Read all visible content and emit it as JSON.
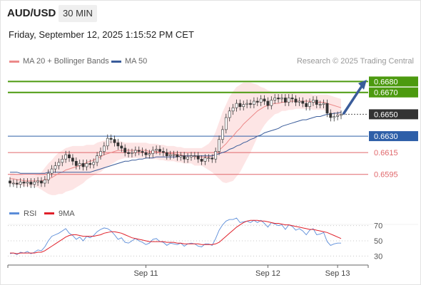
{
  "header": {
    "pair": "AUD/USD",
    "timeframe": "30 MIN",
    "datetime": "Friday, September 12, 2025 1:15:52 PM CET"
  },
  "legend": {
    "ma_bollinger": "MA 20 + Bollinger Bands",
    "ma50": "MA 50",
    "credit": "Research © 2025 Trading Central"
  },
  "colors": {
    "resistance": "#4c9a0f",
    "pivot": "#2e5fa8",
    "support": "#e0676b",
    "bollinger_fill": "#fde0e0",
    "ma20": "#ec8a8a",
    "ma50": "#3a5c9a",
    "candle": "#2c7c2c",
    "candle_down": "#c8323a",
    "rsi": "#5b8dd9",
    "rsi_ma": "#e0202a",
    "last_price": "#333333"
  },
  "chart_data": {
    "type": "candlestick",
    "ylim": [
      0.6572,
      0.6692
    ],
    "x_ticks": [
      "Sep 11",
      "Sep 12",
      "Sep 13"
    ],
    "levels": [
      {
        "label": "0.6680",
        "value": 0.668,
        "kind": "resistance"
      },
      {
        "label": "0.6670",
        "value": 0.667,
        "kind": "resistance"
      },
      {
        "label": "0.6650",
        "value": 0.665,
        "kind": "last"
      },
      {
        "label": "0.6630",
        "value": 0.663,
        "kind": "pivot"
      },
      {
        "label": "0.6615",
        "value": 0.6615,
        "kind": "support"
      },
      {
        "label": "0.6595",
        "value": 0.6595,
        "kind": "support"
      }
    ],
    "close": [
      0.6587,
      0.6587,
      0.6586,
      0.6588,
      0.6587,
      0.6588,
      0.6586,
      0.6588,
      0.6589,
      0.6587,
      0.659,
      0.6596,
      0.66,
      0.6603,
      0.6606,
      0.6609,
      0.6613,
      0.661,
      0.6607,
      0.6603,
      0.6605,
      0.6602,
      0.6605,
      0.6604,
      0.6606,
      0.6612,
      0.6616,
      0.6621,
      0.6628,
      0.6627,
      0.6624,
      0.6621,
      0.6619,
      0.6615,
      0.6614,
      0.6615,
      0.6617,
      0.6616,
      0.6615,
      0.6613,
      0.6614,
      0.6617,
      0.6618,
      0.6616,
      0.6615,
      0.6612,
      0.6613,
      0.6613,
      0.6611,
      0.6612,
      0.6609,
      0.6611,
      0.6612,
      0.6612,
      0.6609,
      0.6607,
      0.661,
      0.661,
      0.6609,
      0.6616,
      0.6627,
      0.6636,
      0.6647,
      0.6653,
      0.6656,
      0.666,
      0.6657,
      0.6659,
      0.666,
      0.6659,
      0.6662,
      0.6661,
      0.6664,
      0.6662,
      0.6658,
      0.6663,
      0.6665,
      0.6664,
      0.6665,
      0.6661,
      0.6665,
      0.6664,
      0.6661,
      0.6662,
      0.666,
      0.6657,
      0.6661,
      0.6663,
      0.6659,
      0.6659,
      0.666,
      0.6651,
      0.6647,
      0.6648,
      0.6649,
      0.665
    ],
    "ma20": [
      0.6591,
      0.6591,
      0.659,
      0.659,
      0.6589,
      0.6589,
      0.6589,
      0.6589,
      0.6589,
      0.6589,
      0.659,
      0.6591,
      0.6592,
      0.6594,
      0.6596,
      0.6597,
      0.6599,
      0.66,
      0.6601,
      0.6602,
      0.6603,
      0.6604,
      0.6606,
      0.6607,
      0.6608,
      0.661,
      0.6611,
      0.6613,
      0.6614,
      0.6615,
      0.6616,
      0.6617,
      0.6617,
      0.6617,
      0.6617,
      0.6617,
      0.6617,
      0.6617,
      0.6617,
      0.6617,
      0.6616,
      0.6616,
      0.6616,
      0.6615,
      0.6615,
      0.6614,
      0.6614,
      0.6614,
      0.6613,
      0.6613,
      0.6612,
      0.6612,
      0.6612,
      0.6611,
      0.6611,
      0.6611,
      0.6611,
      0.6611,
      0.6612,
      0.6614,
      0.6617,
      0.662,
      0.6623,
      0.6627,
      0.663,
      0.6634,
      0.6637,
      0.6641,
      0.6644,
      0.6647,
      0.665,
      0.6653,
      0.6655,
      0.6657,
      0.6658,
      0.6659,
      0.666,
      0.666,
      0.6661,
      0.6661,
      0.6662,
      0.6662,
      0.6662,
      0.6662,
      0.6662,
      0.6662,
      0.6662,
      0.6661,
      0.6661,
      0.6661,
      0.6661,
      0.666,
      0.6659,
      0.6658,
      0.6657,
      0.6656
    ],
    "ma50": [
      0.6597,
      0.6597,
      0.6597,
      0.6596,
      0.6596,
      0.6596,
      0.6596,
      0.6596,
      0.6596,
      0.6596,
      0.6596,
      0.6597,
      0.6597,
      0.6597,
      0.6597,
      0.6597,
      0.6597,
      0.6597,
      0.6597,
      0.6597,
      0.6597,
      0.6597,
      0.6597,
      0.6597,
      0.6598,
      0.6599,
      0.66,
      0.6601,
      0.6602,
      0.6603,
      0.6604,
      0.6605,
      0.6606,
      0.6607,
      0.6607,
      0.6608,
      0.6608,
      0.6609,
      0.6609,
      0.661,
      0.661,
      0.661,
      0.6611,
      0.6611,
      0.6611,
      0.6611,
      0.6611,
      0.6611,
      0.6611,
      0.6612,
      0.6612,
      0.6612,
      0.6612,
      0.6612,
      0.6612,
      0.6612,
      0.6612,
      0.6612,
      0.6612,
      0.6613,
      0.6614,
      0.6615,
      0.6616,
      0.6618,
      0.6619,
      0.6621,
      0.6622,
      0.6624,
      0.6625,
      0.6627,
      0.6628,
      0.663,
      0.6631,
      0.6633,
      0.6634,
      0.6635,
      0.6636,
      0.6637,
      0.6639,
      0.664,
      0.6641,
      0.6642,
      0.6643,
      0.6644,
      0.6645,
      0.6645,
      0.6646,
      0.6647,
      0.6648,
      0.6648,
      0.6649,
      0.665,
      0.665,
      0.6651,
      0.6651,
      0.6652
    ],
    "bb_width": [
      0.0005,
      0.0005,
      0.0005,
      0.0005,
      0.0005,
      0.0005,
      0.0005,
      0.0005,
      0.0006,
      0.0008,
      0.0011,
      0.0014,
      0.0016,
      0.0018,
      0.0019,
      0.002,
      0.002,
      0.002,
      0.002,
      0.0019,
      0.0018,
      0.0017,
      0.0016,
      0.0015,
      0.0014,
      0.0014,
      0.0014,
      0.0013,
      0.0012,
      0.0011,
      0.001,
      0.0009,
      0.0008,
      0.0007,
      0.0007,
      0.0007,
      0.0007,
      0.0007,
      0.0007,
      0.0007,
      0.0007,
      0.0007,
      0.0007,
      0.0007,
      0.0007,
      0.0007,
      0.0007,
      0.0007,
      0.0007,
      0.0007,
      0.0007,
      0.0007,
      0.0007,
      0.0008,
      0.0008,
      0.0008,
      0.001,
      0.0012,
      0.0015,
      0.002,
      0.0026,
      0.0032,
      0.0036,
      0.0039,
      0.0041,
      0.0041,
      0.004,
      0.0038,
      0.0035,
      0.0032,
      0.0028,
      0.0024,
      0.002,
      0.0017,
      0.0014,
      0.0012,
      0.001,
      0.0009,
      0.0008,
      0.0008,
      0.0008,
      0.0008,
      0.0007,
      0.0007,
      0.0007,
      0.0007,
      0.0007,
      0.0007,
      0.0007,
      0.0007,
      0.0007,
      0.0008,
      0.0008,
      0.0008,
      0.0008,
      0.0008
    ],
    "forecast_arrow": {
      "from": 0.665,
      "to": 0.6679
    },
    "indicator": {
      "legend": [
        "RSI",
        "9MA"
      ],
      "levels": [
        {
          "label": "70",
          "value": 70
        },
        {
          "label": "50",
          "value": 50
        },
        {
          "label": "30",
          "value": 30
        }
      ],
      "ylim": [
        20,
        80
      ],
      "rsi": [
        33,
        34,
        32,
        35,
        34,
        36,
        33,
        35,
        38,
        37,
        42,
        50,
        56,
        58,
        60,
        63,
        66,
        60,
        57,
        52,
        55,
        50,
        56,
        54,
        57,
        62,
        65,
        67,
        66,
        63,
        58,
        52,
        54,
        48,
        47,
        50,
        53,
        50,
        48,
        45,
        47,
        52,
        53,
        49,
        48,
        44,
        47,
        46,
        45,
        47,
        43,
        46,
        47,
        46,
        43,
        42,
        46,
        46,
        44,
        53,
        64,
        71,
        76,
        78,
        78,
        80,
        74,
        75,
        76,
        74,
        77,
        74,
        77,
        73,
        68,
        74,
        72,
        70,
        71,
        65,
        71,
        69,
        64,
        66,
        63,
        58,
        64,
        66,
        58,
        59,
        61,
        49,
        44,
        46,
        47,
        47
      ],
      "rsi_ma": [
        34,
        34,
        33,
        34,
        34,
        34,
        34,
        34,
        35,
        35,
        37,
        40,
        43,
        46,
        49,
        52,
        55,
        57,
        58,
        58,
        57,
        56,
        56,
        56,
        56,
        57,
        58,
        60,
        61,
        62,
        62,
        61,
        60,
        58,
        56,
        54,
        53,
        52,
        51,
        50,
        49,
        49,
        49,
        49,
        49,
        48,
        48,
        48,
        47,
        47,
        46,
        46,
        46,
        46,
        46,
        45,
        45,
        45,
        45,
        46,
        48,
        52,
        56,
        60,
        64,
        68,
        71,
        74,
        76,
        77,
        77,
        77,
        76,
        76,
        75,
        74,
        73,
        73,
        72,
        71,
        71,
        70,
        69,
        68,
        67,
        66,
        65,
        65,
        64,
        63,
        62,
        61,
        59,
        57,
        55,
        53
      ]
    }
  }
}
